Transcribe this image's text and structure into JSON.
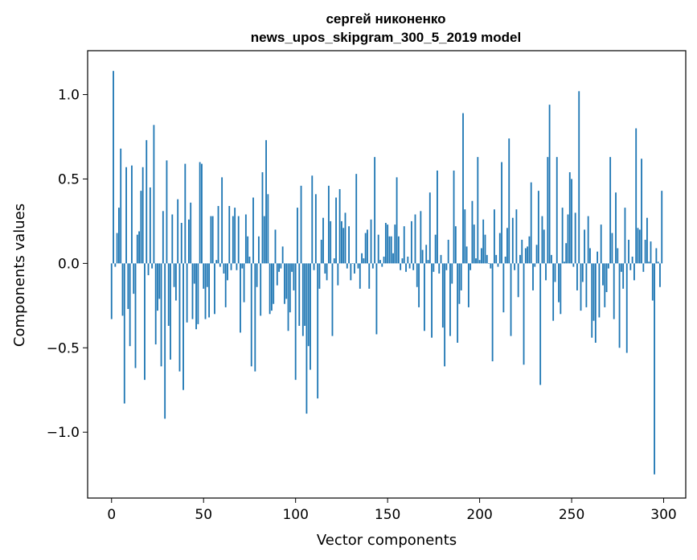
{
  "chart_data": {
    "type": "bar",
    "title": "сергей никоненко",
    "subtitle": "news_upos_skipgram_300_5_2019 model",
    "xlabel": "Vector components",
    "ylabel": "Components values",
    "xlim": [
      -13,
      312
    ],
    "ylim": [
      -1.39,
      1.26
    ],
    "xticks": [
      0,
      50,
      100,
      150,
      200,
      250,
      300
    ],
    "xtick_labels": [
      "0",
      "50",
      "100",
      "150",
      "200",
      "250",
      "300"
    ],
    "yticks": [
      -1.0,
      -0.5,
      0.0,
      0.5,
      1.0
    ],
    "ytick_labels": [
      "−1.0",
      "−0.5",
      "0.0",
      "0.5",
      "1.0"
    ],
    "grid": false,
    "bar_color": "#1f77b4",
    "series": [
      {
        "name": "components",
        "x_start": 0,
        "values": [
          -0.33,
          1.14,
          -0.02,
          0.18,
          0.33,
          0.68,
          -0.31,
          -0.83,
          0.57,
          -0.27,
          -0.49,
          0.58,
          -0.18,
          -0.62,
          0.17,
          0.19,
          0.43,
          0.57,
          -0.69,
          0.73,
          -0.07,
          0.45,
          -0.03,
          0.82,
          -0.48,
          -0.28,
          -0.21,
          -0.61,
          0.31,
          -0.92,
          0.61,
          -0.37,
          -0.57,
          0.29,
          -0.14,
          -0.22,
          0.38,
          -0.64,
          0.24,
          -0.75,
          0.59,
          -0.35,
          0.26,
          0.36,
          -0.33,
          -0.12,
          -0.39,
          -0.36,
          0.6,
          0.59,
          -0.15,
          -0.33,
          -0.14,
          -0.32,
          0.28,
          0.28,
          -0.3,
          0.02,
          0.34,
          -0.02,
          0.51,
          -0.06,
          -0.26,
          -0.1,
          0.34,
          -0.04,
          0.28,
          0.33,
          -0.04,
          0.28,
          -0.41,
          -0.03,
          -0.23,
          0.29,
          0.16,
          0.04,
          -0.61,
          0.39,
          -0.64,
          -0.14,
          0.16,
          -0.31,
          0.54,
          0.28,
          0.73,
          0.41,
          -0.3,
          -0.28,
          -0.24,
          0.2,
          -0.13,
          -0.05,
          -0.03,
          0.1,
          -0.24,
          -0.21,
          -0.4,
          -0.29,
          -0.05,
          -0.16,
          -0.69,
          0.33,
          -0.37,
          0.46,
          -0.43,
          -0.37,
          -0.89,
          -0.49,
          -0.63,
          0.52,
          -0.04,
          0.41,
          -0.8,
          -0.15,
          0.14,
          0.27,
          -0.06,
          -0.1,
          0.46,
          0.25,
          -0.43,
          0.03,
          0.39,
          -0.13,
          0.44,
          0.25,
          0.21,
          0.3,
          -0.03,
          0.22,
          -0.1,
          0.0,
          -0.06,
          0.53,
          -0.03,
          -0.15,
          0.06,
          0.03,
          0.18,
          0.2,
          -0.15,
          0.26,
          -0.03,
          0.63,
          -0.42,
          0.17,
          0.02,
          -0.02,
          0.04,
          0.24,
          0.23,
          0.16,
          0.16,
          0.06,
          0.23,
          0.51,
          0.16,
          -0.04,
          0.03,
          0.22,
          -0.05,
          0.04,
          -0.03,
          0.25,
          -0.04,
          0.29,
          -0.14,
          -0.26,
          0.31,
          0.08,
          -0.4,
          0.11,
          0.02,
          0.42,
          -0.44,
          -0.05,
          0.17,
          0.55,
          -0.06,
          0.05,
          -0.38,
          -0.61,
          -0.04,
          0.14,
          -0.43,
          -0.12,
          0.55,
          0.22,
          -0.47,
          -0.24,
          -0.16,
          0.89,
          0.32,
          0.1,
          -0.26,
          -0.04,
          0.37,
          0.23,
          0.03,
          0.63,
          0.02,
          0.09,
          0.26,
          0.17,
          0.05,
          0.0,
          -0.03,
          -0.58,
          0.32,
          0.05,
          -0.02,
          0.18,
          0.6,
          -0.29,
          0.04,
          0.21,
          0.74,
          -0.43,
          0.27,
          -0.04,
          0.32,
          -0.2,
          0.05,
          0.14,
          -0.6,
          0.09,
          0.1,
          0.16,
          0.48,
          -0.16,
          -0.02,
          0.11,
          0.43,
          -0.72,
          0.28,
          0.2,
          -0.1,
          0.63,
          0.94,
          0.05,
          -0.34,
          -0.11,
          0.63,
          -0.23,
          -0.3,
          0.33,
          0.01,
          0.12,
          0.29,
          0.54,
          0.5,
          -0.02,
          0.3,
          -0.16,
          1.02,
          -0.28,
          -0.11,
          0.2,
          -0.26,
          0.28,
          0.09,
          -0.44,
          -0.34,
          -0.47,
          0.07,
          -0.32,
          0.23,
          -0.13,
          -0.26,
          -0.17,
          -0.03,
          0.63,
          0.18,
          -0.33,
          0.42,
          0.09,
          -0.5,
          -0.05,
          -0.15,
          0.33,
          -0.53,
          0.14,
          -0.04,
          0.04,
          -0.1,
          0.8,
          0.21,
          0.2,
          0.62,
          -0.05,
          0.14,
          0.27,
          0.01,
          0.13,
          -0.22,
          -1.25,
          0.09,
          0.01,
          -0.14,
          0.43
        ]
      }
    ]
  }
}
